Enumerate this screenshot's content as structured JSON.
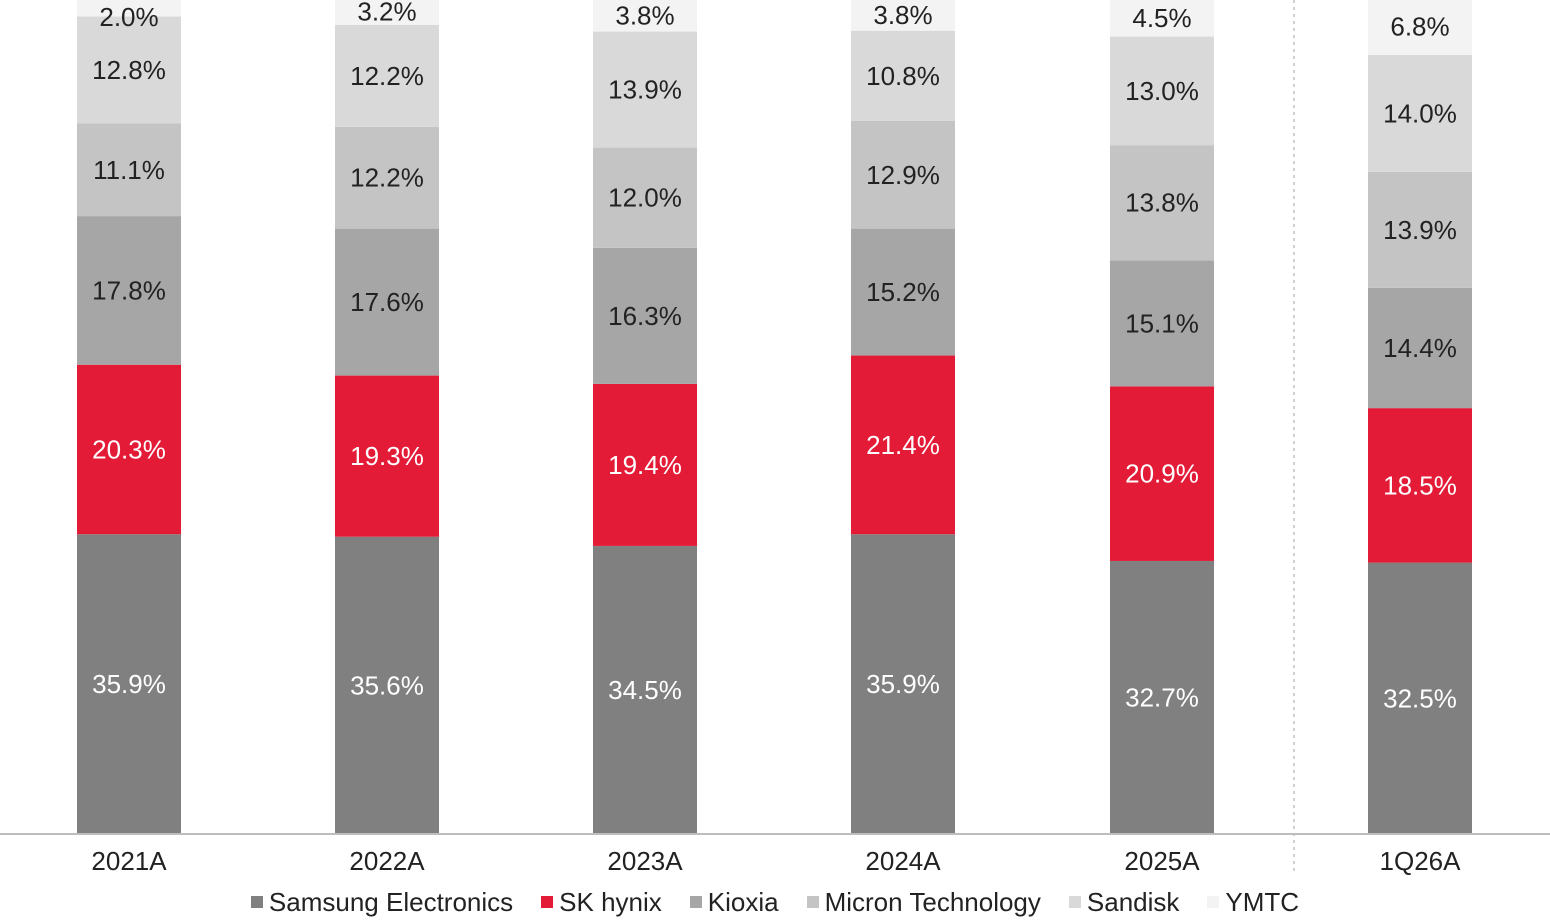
{
  "chart_data": {
    "type": "bar",
    "stacked": true,
    "title": "",
    "xlabel": "",
    "ylabel": "",
    "ylim": [
      0,
      100
    ],
    "grid": false,
    "legend_placement": "bottom",
    "categories": [
      "2021A",
      "2022A",
      "2023A",
      "2024A",
      "2025A",
      "1Q26A"
    ],
    "series": [
      {
        "name": "Samsung Electronics",
        "color": "#7f807f",
        "label_color": "#ffffff",
        "values": [
          35.9,
          35.6,
          34.5,
          35.9,
          32.7,
          32.5
        ],
        "labels": [
          "35.9%",
          "35.6%",
          "34.5%",
          "35.9%",
          "32.7%",
          "32.5%"
        ]
      },
      {
        "name": "SK hynix",
        "color": "#e31b37",
        "label_color": "#ffffff",
        "values": [
          20.3,
          19.3,
          19.4,
          21.4,
          20.9,
          18.5
        ],
        "labels": [
          "20.3%",
          "19.3%",
          "19.4%",
          "21.4%",
          "20.9%",
          "18.5%"
        ]
      },
      {
        "name": "Kioxia",
        "color": "#a6a6a6",
        "label_color": "#222222",
        "values": [
          17.8,
          17.6,
          16.3,
          15.2,
          15.1,
          14.4
        ],
        "labels": [
          "17.8%",
          "17.6%",
          "16.3%",
          "15.2%",
          "15.1%",
          "14.4%"
        ]
      },
      {
        "name": "Micron Technology",
        "color": "#c4c4c4",
        "label_color": "#222222",
        "values": [
          11.1,
          12.2,
          12.0,
          12.9,
          13.8,
          13.9
        ],
        "labels": [
          "11.1%",
          "12.2%",
          "12.0%",
          "12.9%",
          "13.8%",
          "13.9%"
        ]
      },
      {
        "name": "Sandisk",
        "color": "#d9d9d9",
        "label_color": "#222222",
        "values": [
          12.8,
          12.2,
          13.9,
          10.8,
          13.0,
          14.0
        ],
        "labels": [
          "12.8%",
          "12.2%",
          "13.9%",
          "10.8%",
          "13.0%",
          "14.0%"
        ]
      },
      {
        "name": "YMTC",
        "color": "#f2f3f2",
        "label_color": "#222222",
        "values": [
          2.0,
          3.2,
          3.8,
          3.8,
          4.5,
          6.8
        ],
        "labels": [
          "2.0%",
          "3.2%",
          "3.8%",
          "3.8%",
          "4.5%",
          "6.8%"
        ]
      }
    ],
    "separator_before_category": "1Q26A"
  }
}
